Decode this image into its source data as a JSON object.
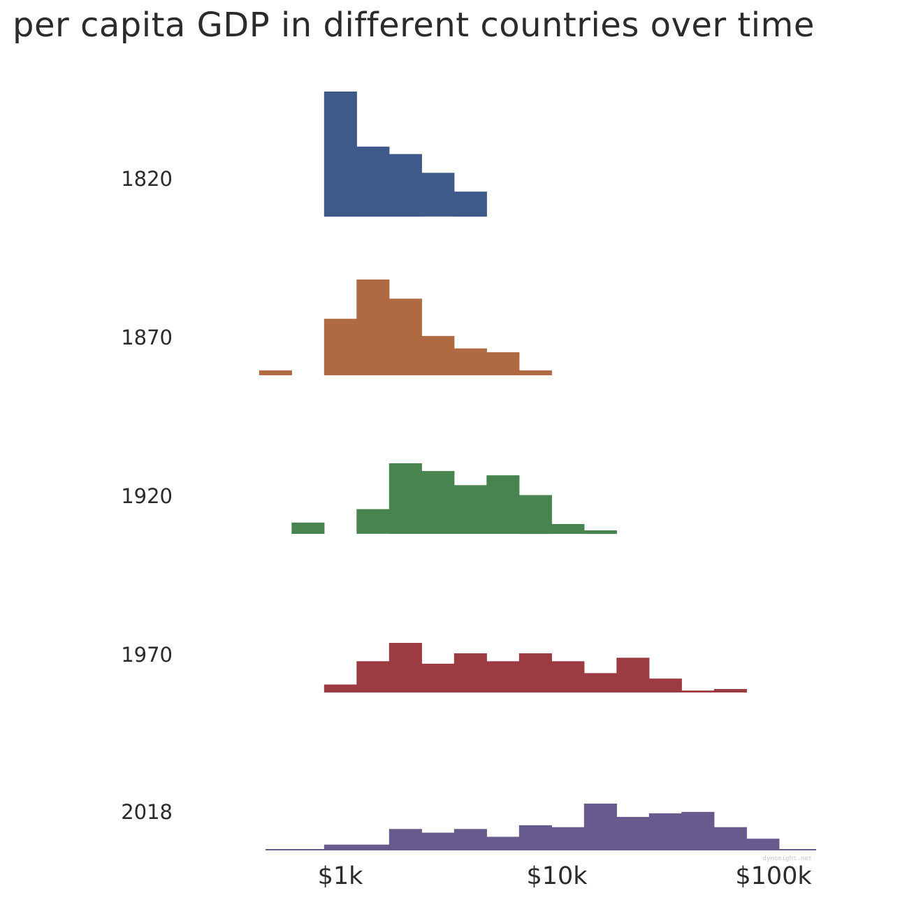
{
  "chart_data": {
    "type": "histogram",
    "title": "per capita GDP in different countries over time",
    "x_scale": "log",
    "x_ticks": [
      {
        "value": 1000,
        "label": "$1k"
      },
      {
        "value": 10000,
        "label": "$10k"
      },
      {
        "value": 100000,
        "label": "$100k"
      }
    ],
    "xlim": [
      316,
      100000
    ],
    "bin_width_log10": 0.15,
    "first_bin_start": 422,
    "watermark": "dynomight.net",
    "series": [
      {
        "name": "1820",
        "color": "#3d5a8a",
        "values": [
          0,
          0,
          1.0,
          0.56,
          0.5,
          0.35,
          0.2,
          0,
          0,
          0,
          0,
          0,
          0,
          0,
          0,
          0,
          0
        ]
      },
      {
        "name": "1870",
        "color": "#b06a42",
        "values": [
          0.05,
          0,
          0.59,
          1.0,
          0.8,
          0.41,
          0.28,
          0.24,
          0.05,
          0,
          0,
          0,
          0,
          0,
          0,
          0,
          0
        ]
      },
      {
        "name": "1920",
        "color": "#478450",
        "values": [
          0,
          0.16,
          0,
          0.35,
          1.0,
          0.89,
          0.69,
          0.83,
          0.55,
          0.14,
          0.05,
          0,
          0,
          0,
          0,
          0,
          0
        ]
      },
      {
        "name": "1970",
        "color": "#9c3c42",
        "values": [
          0,
          0,
          0.16,
          0.63,
          1.0,
          0.58,
          0.79,
          0.63,
          0.79,
          0.63,
          0.39,
          0.7,
          0.28,
          0.04,
          0.07,
          0,
          0
        ]
      },
      {
        "name": "2018",
        "color": "#675a8c",
        "values": [
          0,
          0,
          0.11,
          0.11,
          0.45,
          0.37,
          0.45,
          0.28,
          0.53,
          0.49,
          1.0,
          0.71,
          0.79,
          0.82,
          0.49,
          0.24,
          0
        ]
      }
    ]
  }
}
